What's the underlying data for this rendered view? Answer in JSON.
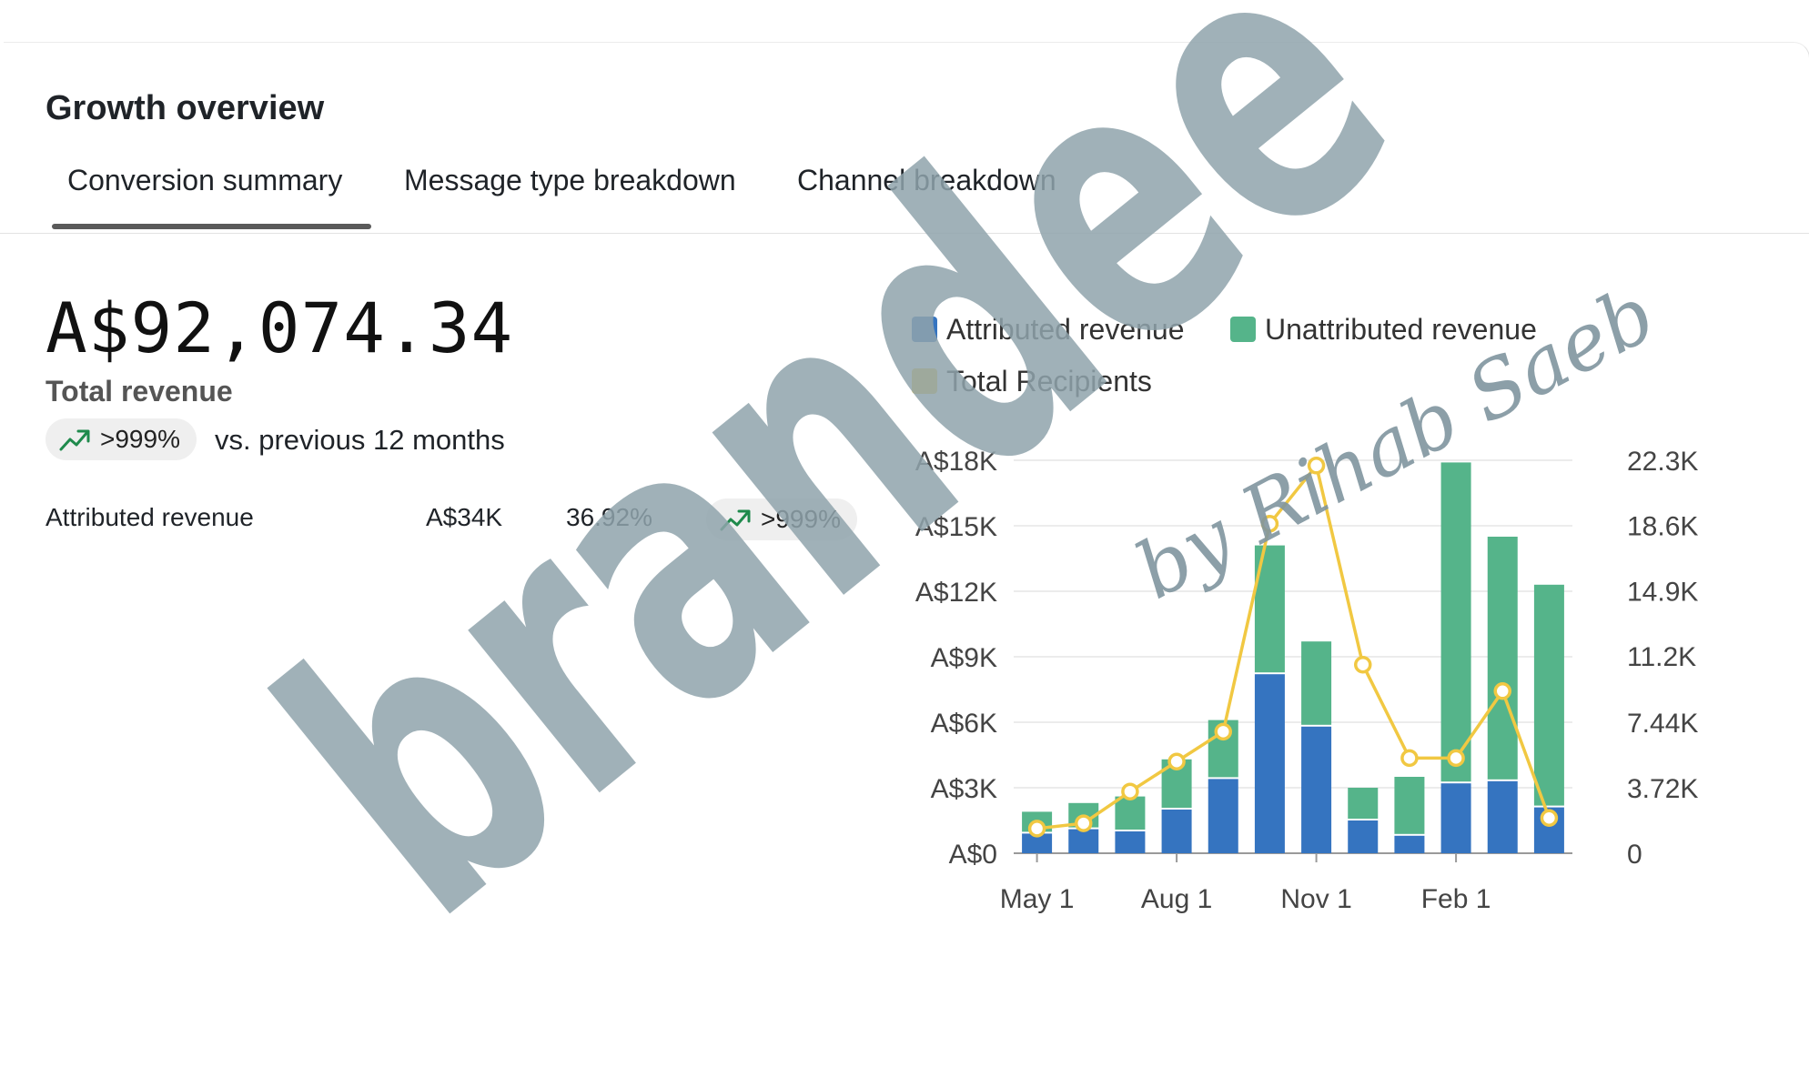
{
  "header": {
    "title": "Growth overview"
  },
  "tabs": [
    {
      "label": "Conversion summary",
      "active": true
    },
    {
      "label": "Message type breakdown",
      "active": false
    },
    {
      "label": "Channel breakdown",
      "active": false
    }
  ],
  "summary": {
    "total_value": "A$92,074.34",
    "total_label": "Total revenue",
    "change_badge": ">999%",
    "change_text": "vs. previous 12 months",
    "trend_icon": "trend-up-icon",
    "trend_color": "#1f8a4c"
  },
  "breakdown_rows": [
    {
      "label": "Attributed revenue",
      "value": "A$34K",
      "share": "36.92%",
      "change": ">999%"
    }
  ],
  "watermark": {
    "logo_text": "brandee",
    "signature": "by Rihab Saeb"
  },
  "chart_data": {
    "type": "bar",
    "stacked": true,
    "x_tick_labels": [
      "May 1",
      "Aug 1",
      "Nov 1",
      "Feb 1"
    ],
    "x_tick_positions": [
      0.5,
      3.5,
      6.5,
      9.5
    ],
    "n_periods": 12,
    "series": [
      {
        "name": "Attributed revenue",
        "color": "#3574c0",
        "axis": "left",
        "values": [
          900,
          1100,
          1000,
          2000,
          3400,
          8200,
          5800,
          1500,
          800,
          3200,
          3300,
          2100
        ]
      },
      {
        "name": "Unattributed revenue",
        "color": "#55b48a",
        "axis": "left",
        "values": [
          1000,
          1200,
          1600,
          2300,
          2700,
          5900,
          3900,
          1500,
          2700,
          14700,
          11200,
          10200
        ]
      },
      {
        "name": "Total Recipients",
        "color": "#f1c842",
        "type": "line",
        "axis": "right",
        "values": [
          1400,
          1700,
          3500,
          5200,
          6900,
          18700,
          22000,
          10700,
          5400,
          5400,
          9200,
          2000
        ]
      }
    ],
    "y_left": {
      "min": 0,
      "max": 18000,
      "ticks": [
        0,
        3000,
        6000,
        9000,
        12000,
        15000,
        18000
      ],
      "tick_labels": [
        "A$0",
        "A$3K",
        "A$6K",
        "A$9K",
        "A$12K",
        "A$15K",
        "A$18K"
      ]
    },
    "y_right": {
      "min": 0,
      "max": 22300,
      "ticks": [
        0,
        3720,
        7440,
        11200,
        14900,
        18600,
        22300
      ],
      "tick_labels": [
        "0",
        "3.72K",
        "7.44K",
        "11.2K",
        "14.9K",
        "18.6K",
        "22.3K"
      ]
    },
    "legend_position": "top",
    "grid": true
  }
}
